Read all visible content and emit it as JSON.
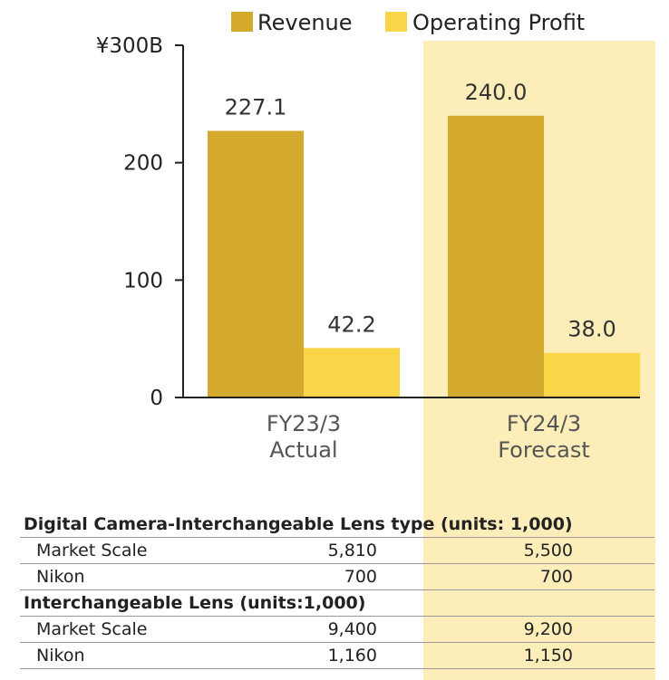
{
  "chart_data": {
    "type": "bar",
    "categories": [
      "FY23/3\nActual",
      "FY24/3\nForecast"
    ],
    "category_lines": [
      [
        "FY23/3",
        "Actual"
      ],
      [
        "FY24/3",
        "Forecast"
      ]
    ],
    "series": [
      {
        "name": "Revenue",
        "values": [
          227.1,
          240.0
        ],
        "labels": [
          "227.1",
          "240.0"
        ],
        "color": "#d4aa2e"
      },
      {
        "name": "Operating Profit",
        "values": [
          42.2,
          38.0
        ],
        "labels": [
          "42.2",
          "38.0"
        ],
        "color": "#f9d548"
      }
    ],
    "y_ticks": [
      {
        "value": 0,
        "label": "0"
      },
      {
        "value": 100,
        "label": "100"
      },
      {
        "value": 200,
        "label": "200"
      },
      {
        "value": 300,
        "label": "¥300B"
      }
    ],
    "ylim": [
      0,
      300
    ],
    "legend_position": "top",
    "highlight_category": "FY24/3 Forecast",
    "highlight_color": "#fdeeb9"
  },
  "table": {
    "sections": [
      {
        "title": "Digital Camera-Interchangeable Lens type (units: 1,000)",
        "rows": [
          {
            "label": "Market Scale",
            "actual": "5,810",
            "forecast": "5,500"
          },
          {
            "label": "Nikon",
            "actual": "700",
            "forecast": "700"
          }
        ]
      },
      {
        "title": "Interchangeable Lens (units:1,000)",
        "rows": [
          {
            "label": "Market Scale",
            "actual": "9,400",
            "forecast": "9,200"
          },
          {
            "label": "Nikon",
            "actual": "1,160",
            "forecast": "1,150"
          }
        ]
      }
    ]
  }
}
